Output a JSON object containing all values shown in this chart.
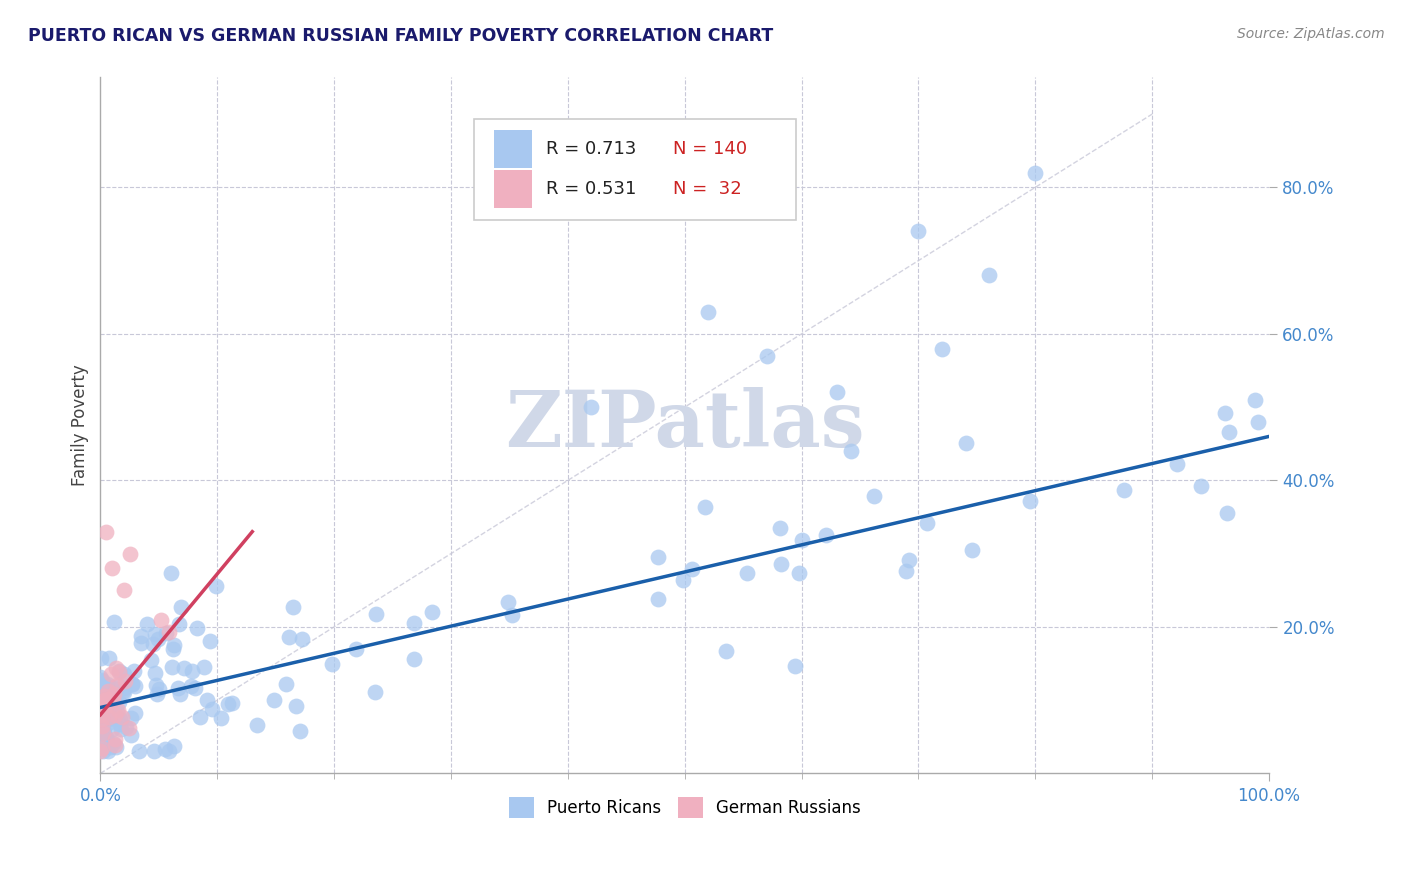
{
  "title": "PUERTO RICAN VS GERMAN RUSSIAN FAMILY POVERTY CORRELATION CHART",
  "source": "Source: ZipAtlas.com",
  "ylabel": "Family Poverty",
  "xlim": [
    0,
    1.0
  ],
  "ylim": [
    0,
    0.95
  ],
  "color_blue": "#a8c8f0",
  "color_pink": "#f0b0c0",
  "color_trend_blue": "#1a5faa",
  "color_trend_pink": "#d04060",
  "color_ref_line": "#c8c8d8",
  "color_grid": "#c8c8d8",
  "color_title": "#1a1a6c",
  "color_axis_blue": "#4488cc",
  "color_text_dark": "#222222",
  "color_text_red": "#cc2222",
  "watermark_color": "#d0d8e8",
  "pr_trend_x0": 0.0,
  "pr_trend_y0": 0.09,
  "pr_trend_x1": 1.0,
  "pr_trend_y1": 0.46,
  "gr_trend_x0": 0.0,
  "gr_trend_y0": 0.08,
  "gr_trend_x1": 0.13,
  "gr_trend_y1": 0.33,
  "ref_line_x0": 0.0,
  "ref_line_y0": 0.0,
  "ref_line_x1": 0.9,
  "ref_line_y1": 0.9
}
